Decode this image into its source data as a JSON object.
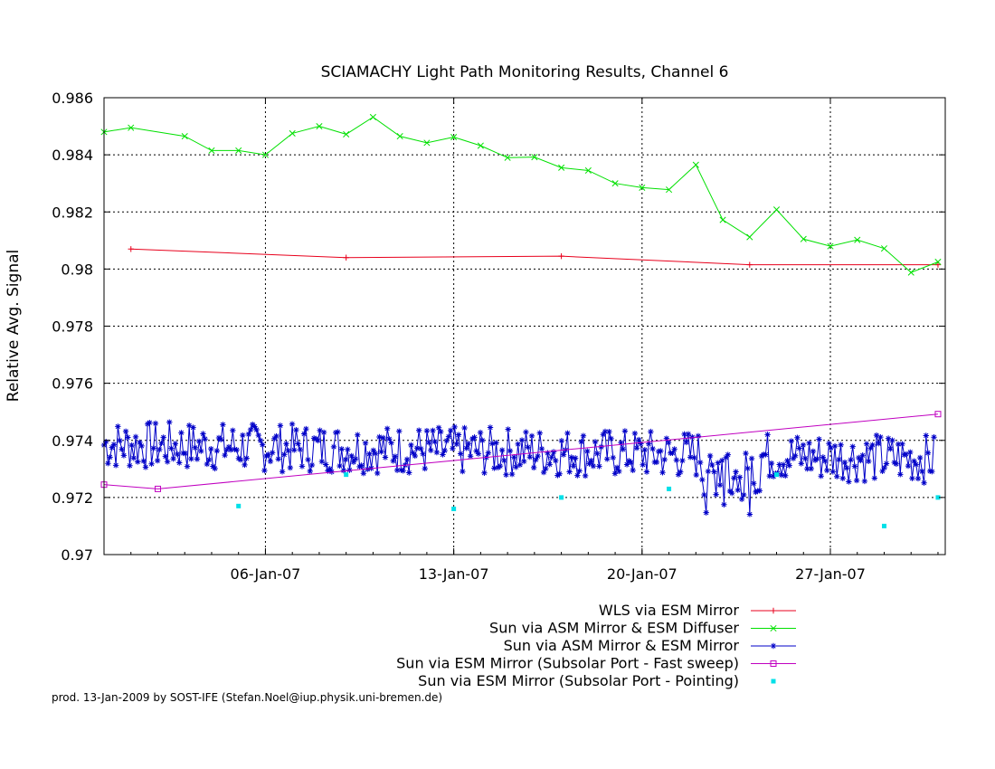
{
  "chart_data": {
    "type": "line",
    "title": "SCIAMACHY Light Path Monitoring Results, Channel 6",
    "xlabel": "",
    "ylabel": "Relative Avg. Signal",
    "xlim": [
      "2006-12-31",
      "2007-01-31"
    ],
    "ylim": [
      0.97,
      0.986
    ],
    "x_ticks": [
      {
        "date": "2007-01-06",
        "label": "06-Jan-07"
      },
      {
        "date": "2007-01-13",
        "label": "13-Jan-07"
      },
      {
        "date": "2007-01-20",
        "label": "20-Jan-07"
      },
      {
        "date": "2007-01-27",
        "label": "27-Jan-07"
      }
    ],
    "y_ticks": [
      {
        "value": 0.97,
        "label": "0.97"
      },
      {
        "value": 0.972,
        "label": "0.972"
      },
      {
        "value": 0.974,
        "label": "0.974"
      },
      {
        "value": 0.976,
        "label": "0.976"
      },
      {
        "value": 0.978,
        "label": "0.978"
      },
      {
        "value": 0.98,
        "label": "0.98"
      },
      {
        "value": 0.982,
        "label": "0.982"
      },
      {
        "value": 0.984,
        "label": "0.984"
      },
      {
        "value": 0.986,
        "label": "0.986"
      }
    ],
    "grid": true,
    "legend_position": "below-right",
    "series": [
      {
        "name": "WLS via ESM Mirror",
        "color": "#e8001c",
        "marker": "plus",
        "style": "line",
        "points": [
          [
            "2007-01-01",
            0.9807
          ],
          [
            "2007-01-09",
            0.9804
          ],
          [
            "2007-01-17",
            0.98045
          ],
          [
            "2007-01-24",
            0.98015
          ],
          [
            "2007-01-31",
            0.98015
          ]
        ]
      },
      {
        "name": "Sun via ASM Mirror & ESM Diffuser",
        "color": "#00e000",
        "marker": "x",
        "style": "line",
        "points": [
          [
            "2006-12-31",
            0.9848
          ],
          [
            "2007-01-01",
            0.98495
          ],
          [
            "2007-01-03",
            0.98465
          ],
          [
            "2007-01-04",
            0.98415
          ],
          [
            "2007-01-05",
            0.98415
          ],
          [
            "2007-01-06",
            0.984
          ],
          [
            "2007-01-07",
            0.98475
          ],
          [
            "2007-01-08",
            0.985
          ],
          [
            "2007-01-09",
            0.98472
          ],
          [
            "2007-01-10",
            0.98532
          ],
          [
            "2007-01-11",
            0.98465
          ],
          [
            "2007-01-12",
            0.98442
          ],
          [
            "2007-01-13",
            0.98462
          ],
          [
            "2007-01-14",
            0.98432
          ],
          [
            "2007-01-15",
            0.9839
          ],
          [
            "2007-01-16",
            0.98392
          ],
          [
            "2007-01-17",
            0.98355
          ],
          [
            "2007-01-18",
            0.98345
          ],
          [
            "2007-01-19",
            0.983
          ],
          [
            "2007-01-20",
            0.98285
          ],
          [
            "2007-01-21",
            0.98278
          ],
          [
            "2007-01-22",
            0.98365
          ],
          [
            "2007-01-23",
            0.98172
          ],
          [
            "2007-01-24",
            0.98112
          ],
          [
            "2007-01-25",
            0.98208
          ],
          [
            "2007-01-26",
            0.98105
          ],
          [
            "2007-01-27",
            0.9808
          ],
          [
            "2007-01-28",
            0.98102
          ],
          [
            "2007-01-29",
            0.98072
          ],
          [
            "2007-01-30",
            0.97988
          ],
          [
            "2007-01-31",
            0.98025
          ]
        ]
      },
      {
        "name": "Sun via ASM Mirror & ESM Mirror",
        "color": "#0000c8",
        "marker": "star",
        "style": "line",
        "points": []
      },
      {
        "name": "Sun via ESM Mirror (Subsolar Port - Fast sweep)",
        "color": "#c000c0",
        "marker": "square",
        "style": "line",
        "points": [
          [
            "2006-12-31",
            0.97245
          ],
          [
            "2007-01-02",
            0.9723
          ],
          [
            "2007-01-31",
            0.97492
          ]
        ]
      },
      {
        "name": "Sun via ESM Mirror (Subsolar Port - Pointing)",
        "color": "#00e0e8",
        "marker": "filled-square",
        "style": "points",
        "points": [
          [
            "2007-01-05",
            0.9717
          ],
          [
            "2007-01-09",
            0.9728
          ],
          [
            "2007-01-13",
            0.9716
          ],
          [
            "2007-01-17",
            0.972
          ],
          [
            "2007-01-21",
            0.9723
          ],
          [
            "2007-01-25",
            0.9728
          ],
          [
            "2007-01-29",
            0.971
          ],
          [
            "2007-01-31",
            0.972
          ]
        ]
      }
    ]
  },
  "footer": {
    "credit": "prod. 13-Jan-2009 by SOST-IFE (Stefan.Noel@iup.physik.uni-bremen.de)"
  }
}
